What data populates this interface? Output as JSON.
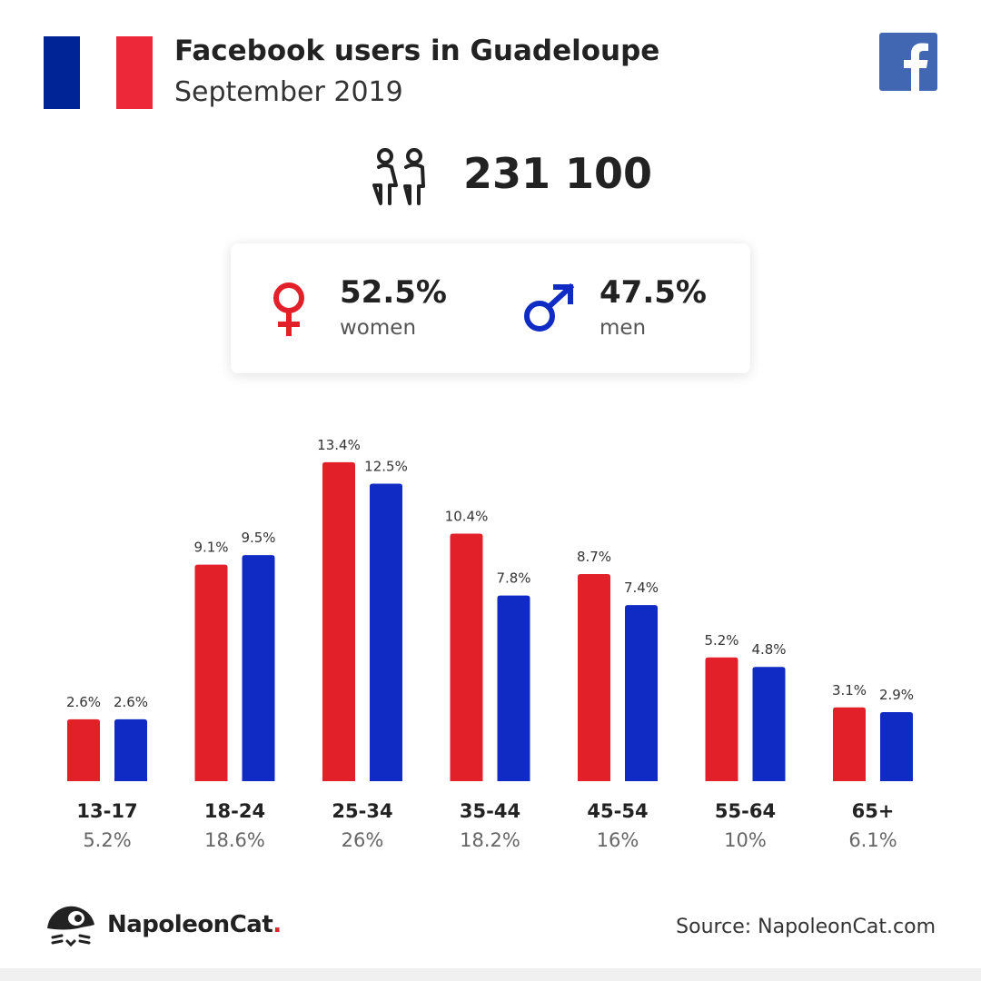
{
  "header": {
    "title": "Facebook users in Guadeloupe",
    "subtitle": "September 2019",
    "flag_colors": [
      "#002395",
      "#ffffff",
      "#ED2939"
    ],
    "facebook_color": "#4267B2"
  },
  "total": {
    "value": "231 100",
    "icon": "people-icon"
  },
  "gender": {
    "women": {
      "pct": "52.5%",
      "label": "women",
      "color": "#e1202a",
      "icon": "female-symbol-icon"
    },
    "men": {
      "pct": "47.5%",
      "label": "men",
      "color": "#0f2bc4",
      "icon": "male-symbol-icon"
    }
  },
  "chart_data": {
    "type": "bar",
    "categories": [
      "13-17",
      "18-24",
      "25-34",
      "35-44",
      "45-54",
      "55-64",
      "65+"
    ],
    "category_totals": [
      "5.2%",
      "18.6%",
      "26%",
      "18.2%",
      "16%",
      "10%",
      "6.1%"
    ],
    "series": [
      {
        "values": [
          2.6,
          9.1,
          13.4,
          10.4,
          8.7,
          5.2,
          3.1
        ],
        "labels": [
          "2.6%",
          "9.1%",
          "13.4%",
          "10.4%",
          "8.7%",
          "5.2%",
          "3.1%"
        ],
        "color": "#e1202a"
      },
      {
        "values": [
          2.6,
          9.5,
          12.5,
          7.8,
          7.4,
          4.8,
          2.9
        ],
        "labels": [
          "2.6%",
          "9.5%",
          "12.5%",
          "7.8%",
          "7.4%",
          "4.8%",
          "2.9%"
        ],
        "color": "#0f2bc4"
      }
    ],
    "unit": "%",
    "grid": false,
    "legend": "none"
  },
  "footer": {
    "brand": "NapoleonCat",
    "brand_dot": ".",
    "source": "Source: NapoleonCat.com"
  }
}
